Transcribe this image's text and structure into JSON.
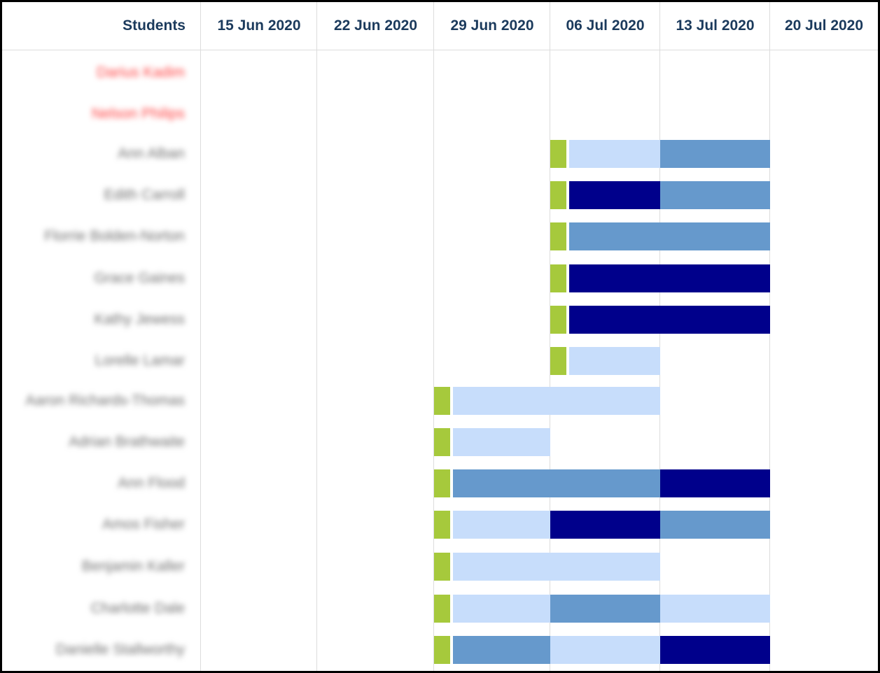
{
  "header": {
    "students_label": "Students",
    "weeks": [
      "15 Jun 2020",
      "22 Jun 2020",
      "29 Jun 2020",
      "06 Jul 2020",
      "13 Jul 2020",
      "20 Jul 2020"
    ]
  },
  "colors": {
    "green": "#a6c93c",
    "light": "#c7ddfb",
    "mid": "#6699cc",
    "dark": "#00008b",
    "flagged_name": "#ff4040",
    "header_text": "#1b3a5c"
  },
  "students": [
    {
      "name": "Darius Kadim",
      "flagged": true,
      "start_week": null,
      "segments": []
    },
    {
      "name": "Nelson Philips",
      "flagged": true,
      "start_week": null,
      "segments": []
    },
    {
      "name": "Ann Alban",
      "flagged": false,
      "start_week": 3,
      "segments": [
        "light",
        "mid"
      ]
    },
    {
      "name": "Edith Carroll",
      "flagged": false,
      "start_week": 3,
      "segments": [
        "dark",
        "mid"
      ]
    },
    {
      "name": "Florrie Bolden-Norton",
      "flagged": false,
      "start_week": 3,
      "segments": [
        "mid",
        "mid"
      ]
    },
    {
      "name": "Grace Gaines",
      "flagged": false,
      "start_week": 3,
      "segments": [
        "dark",
        "dark"
      ]
    },
    {
      "name": "Kathy Jewess",
      "flagged": false,
      "start_week": 3,
      "segments": [
        "dark",
        "dark"
      ]
    },
    {
      "name": "Lorelle Lamar",
      "flagged": false,
      "start_week": 3,
      "segments": [
        "light"
      ]
    },
    {
      "name": "Aaron Richards-Thomas",
      "flagged": false,
      "start_week": 2,
      "segments": [
        "light",
        "light"
      ]
    },
    {
      "name": "Adrian Brathwaite",
      "flagged": false,
      "start_week": 2,
      "segments": [
        "light"
      ]
    },
    {
      "name": "Ann Flood",
      "flagged": false,
      "start_week": 2,
      "segments": [
        "mid",
        "mid",
        "dark"
      ]
    },
    {
      "name": "Amos Fisher",
      "flagged": false,
      "start_week": 2,
      "segments": [
        "light",
        "dark",
        "mid"
      ]
    },
    {
      "name": "Benjamin Kaller",
      "flagged": false,
      "start_week": 2,
      "segments": [
        "light",
        "light"
      ]
    },
    {
      "name": "Charlotte Dale",
      "flagged": false,
      "start_week": 2,
      "segments": [
        "light",
        "mid",
        "light"
      ]
    },
    {
      "name": "Danielle Stallworthy",
      "flagged": false,
      "start_week": 2,
      "segments": [
        "mid",
        "light",
        "dark"
      ]
    }
  ]
}
